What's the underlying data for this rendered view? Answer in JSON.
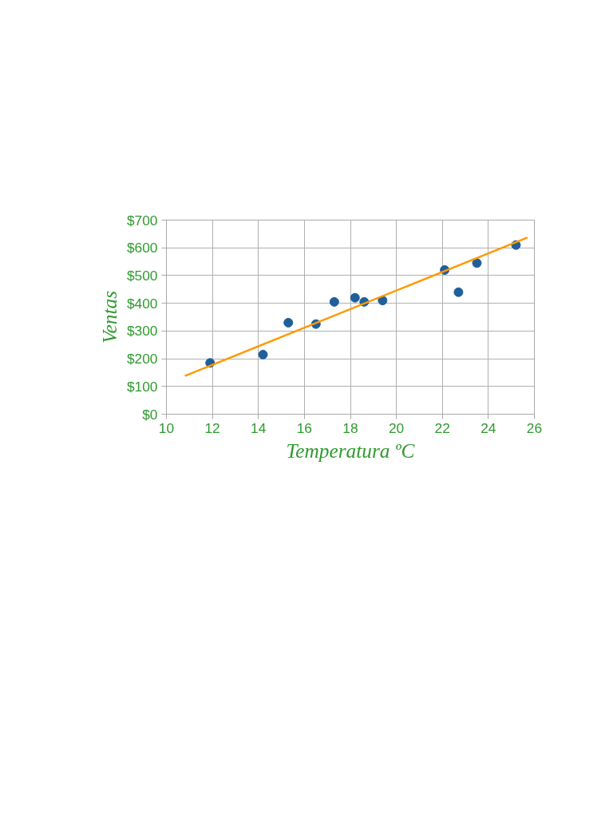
{
  "chart_data": {
    "type": "scatter",
    "xlabel": "Temperatura ºC",
    "ylabel": "Ventas",
    "series": [
      {
        "color": "#1f5f9a",
        "marker": "circle",
        "x": [
          11.9,
          14.2,
          15.3,
          16.5,
          17.3,
          18.2,
          18.6,
          19.4,
          22.1,
          22.7,
          23.5,
          25.2
        ],
        "values": [
          185,
          215,
          330,
          325,
          405,
          420,
          405,
          410,
          520,
          440,
          545,
          610
        ]
      },
      {
        "type": "line",
        "color": "#ff9900",
        "line_style": "solid",
        "x": [
          10.8,
          25.7
        ],
        "values": [
          138,
          637
        ]
      }
    ],
    "xlim": [
      10,
      26
    ],
    "ylim": [
      0,
      700
    ],
    "xticks": [
      10,
      12,
      14,
      16,
      18,
      20,
      22,
      24,
      26
    ],
    "yticks": [
      {
        "value": 0,
        "label": "$0"
      },
      {
        "value": 100,
        "label": "$100"
      },
      {
        "value": 200,
        "label": "$200"
      },
      {
        "value": 300,
        "label": "$300"
      },
      {
        "value": 400,
        "label": "$400"
      },
      {
        "value": 500,
        "label": "$500"
      },
      {
        "value": 600,
        "label": "$600"
      },
      {
        "value": 700,
        "label": "$700"
      }
    ],
    "grid": true
  }
}
